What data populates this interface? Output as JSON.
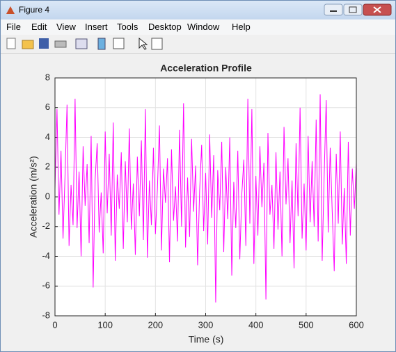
{
  "window": {
    "title": "Figure 4",
    "menus": [
      "File",
      "Edit",
      "View",
      "Insert",
      "Tools",
      "Desktop",
      "Window",
      "Help"
    ]
  },
  "chart_data": {
    "type": "line",
    "title": "Acceleration Profile",
    "x_label": "Time (s)",
    "y_label": "Acceleration (m/s²)",
    "color": "#ff00ff",
    "grid": true,
    "xlim": [
      0,
      600
    ],
    "xticks": [
      0,
      100,
      200,
      300,
      400,
      500,
      600
    ],
    "ylim": [
      -8,
      8
    ],
    "yticks": [
      -8,
      -6,
      -4,
      -2,
      0,
      2,
      4,
      6,
      8
    ],
    "x": [
      0,
      4,
      8,
      12,
      16,
      20,
      24,
      28,
      32,
      36,
      40,
      44,
      48,
      52,
      56,
      60,
      64,
      68,
      72,
      76,
      80,
      84,
      88,
      92,
      96,
      100,
      104,
      108,
      112,
      116,
      120,
      124,
      128,
      132,
      136,
      140,
      144,
      148,
      152,
      156,
      160,
      164,
      168,
      172,
      176,
      180,
      184,
      188,
      192,
      196,
      200,
      204,
      208,
      212,
      216,
      220,
      224,
      228,
      232,
      236,
      240,
      244,
      248,
      252,
      256,
      260,
      264,
      268,
      272,
      276,
      280,
      284,
      288,
      292,
      296,
      300,
      304,
      308,
      312,
      316,
      320,
      324,
      328,
      332,
      336,
      340,
      344,
      348,
      352,
      356,
      360,
      364,
      368,
      372,
      376,
      380,
      384,
      388,
      392,
      396,
      400,
      404,
      408,
      412,
      416,
      420,
      424,
      428,
      432,
      436,
      440,
      444,
      448,
      452,
      456,
      460,
      464,
      468,
      472,
      476,
      480,
      484,
      488,
      492,
      496,
      500,
      504,
      508,
      512,
      516,
      520,
      524,
      528,
      532,
      536,
      540,
      544,
      548,
      552,
      556,
      560,
      564,
      568,
      572,
      576,
      580,
      584,
      588,
      592,
      596,
      600
    ],
    "values": [
      0.5,
      5.9,
      -1.2,
      3.1,
      -2.8,
      1.4,
      6.2,
      -3.3,
      0.8,
      -1.9,
      6.6,
      -2.1,
      1.7,
      -4.0,
      3.4,
      -0.6,
      2.2,
      -3.1,
      4.1,
      -6.1,
      1.2,
      3.6,
      -2.4,
      0.3,
      -3.8,
      4.4,
      -1.1,
      2.9,
      -2.6,
      5.0,
      -4.3,
      1.5,
      -0.8,
      3.0,
      -3.5,
      2.4,
      -1.7,
      4.6,
      -2.2,
      0.9,
      -3.9,
      2.7,
      -1.3,
      3.8,
      -2.9,
      5.9,
      -4.1,
      1.1,
      -1.9,
      3.3,
      -2.5,
      0.6,
      4.8,
      -3.6,
      1.9,
      -0.4,
      2.6,
      -4.4,
      3.2,
      -1.6,
      0.7,
      -3.0,
      4.5,
      -2.0,
      6.3,
      -3.4,
      1.3,
      -2.7,
      3.9,
      -1.0,
      2.1,
      -4.6,
      0.4,
      3.5,
      -2.3,
      1.6,
      -3.2,
      4.2,
      -1.4,
      2.8,
      -7.1,
      1.8,
      -0.9,
      3.7,
      -3.7,
      2.0,
      -1.5,
      4.0,
      -5.3,
      1.0,
      -2.1,
      3.1,
      -4.2,
      0.2,
      2.5,
      -3.3,
      6.6,
      -1.8,
      5.9,
      -4.5,
      1.4,
      -2.6,
      3.4,
      -0.7,
      2.3,
      -6.9,
      4.3,
      -1.2,
      0.8,
      -3.5,
      3.0,
      -2.2,
      1.7,
      -4.0,
      4.7,
      -0.5,
      2.6,
      -3.1,
      1.1,
      -4.8,
      3.6,
      -1.3,
      6.0,
      -2.8,
      0.9,
      -3.6,
      4.1,
      -1.7,
      2.4,
      -2.0,
      5.2,
      -3.0,
      6.9,
      -4.3,
      1.5,
      6.5,
      -2.4,
      3.3,
      -1.0,
      -5.0,
      2.9,
      -1.8,
      4.4,
      -3.2,
      0.6,
      -4.5,
      3.7,
      -2.6,
      1.9,
      -0.8,
      2.3
    ]
  }
}
